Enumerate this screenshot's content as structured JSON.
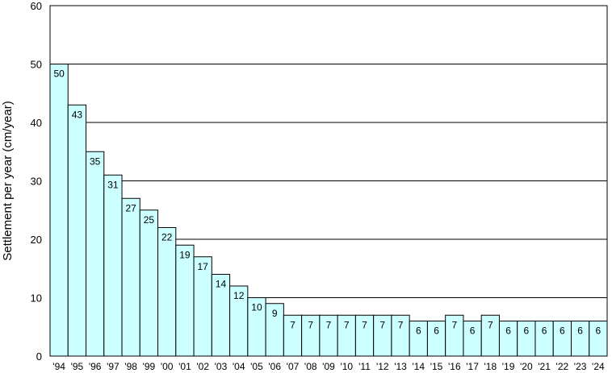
{
  "chart_data": {
    "type": "bar",
    "title": "",
    "xlabel": "",
    "ylabel": "Settlement per year (cm/year)",
    "ylim": [
      0,
      60
    ],
    "yticks": [
      0,
      10,
      20,
      30,
      40,
      50,
      60
    ],
    "grid": true,
    "categories": [
      "'94",
      "'95",
      "'96",
      "'97",
      "'98",
      "'99",
      "'00",
      "'01",
      "'02",
      "'03",
      "'04",
      "'05",
      "'06",
      "'07",
      "'08",
      "'09",
      "'10",
      "'11",
      "'12",
      "'13",
      "'14",
      "'15",
      "'16",
      "'17",
      "'18",
      "'19",
      "'20",
      "'21",
      "'22",
      "'23",
      "'24"
    ],
    "values": [
      50,
      43,
      35,
      31,
      27,
      25,
      22,
      19,
      17,
      14,
      12,
      10,
      9,
      7,
      7,
      7,
      7,
      7,
      7,
      7,
      6,
      6,
      7,
      6,
      7,
      6,
      6,
      6,
      6,
      6,
      6
    ],
    "bar_color": "#ccffff",
    "edge_color": "#000000"
  }
}
